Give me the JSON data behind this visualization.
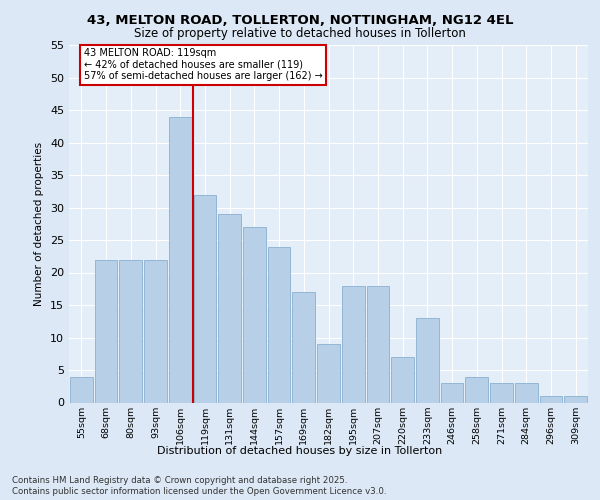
{
  "title1": "43, MELTON ROAD, TOLLERTON, NOTTINGHAM, NG12 4EL",
  "title2": "Size of property relative to detached houses in Tollerton",
  "xlabel": "Distribution of detached houses by size in Tollerton",
  "ylabel": "Number of detached properties",
  "categories": [
    "55sqm",
    "68sqm",
    "80sqm",
    "93sqm",
    "106sqm",
    "119sqm",
    "131sqm",
    "144sqm",
    "157sqm",
    "169sqm",
    "182sqm",
    "195sqm",
    "207sqm",
    "220sqm",
    "233sqm",
    "246sqm",
    "258sqm",
    "271sqm",
    "284sqm",
    "296sqm",
    "309sqm"
  ],
  "values": [
    4,
    22,
    22,
    22,
    44,
    32,
    29,
    27,
    24,
    17,
    9,
    18,
    18,
    7,
    13,
    3,
    4,
    3,
    3,
    1,
    1
  ],
  "bar_color": "#b8cfe8",
  "bar_edge_color": "#8ab0d0",
  "highlight_index": 5,
  "vline_color": "#cc0000",
  "background_color": "#dce8f5",
  "plot_bg_color": "#e4eef8",
  "grid_color": "#ffffff",
  "annotation_text": "43 MELTON ROAD: 119sqm\n← 42% of detached houses are smaller (119)\n57% of semi-detached houses are larger (162) →",
  "annotation_box_facecolor": "#ffffff",
  "annotation_box_edgecolor": "#cc0000",
  "footnote1": "Contains HM Land Registry data © Crown copyright and database right 2025.",
  "footnote2": "Contains public sector information licensed under the Open Government Licence v3.0.",
  "ylim": [
    0,
    55
  ],
  "yticks": [
    0,
    5,
    10,
    15,
    20,
    25,
    30,
    35,
    40,
    45,
    50,
    55
  ]
}
